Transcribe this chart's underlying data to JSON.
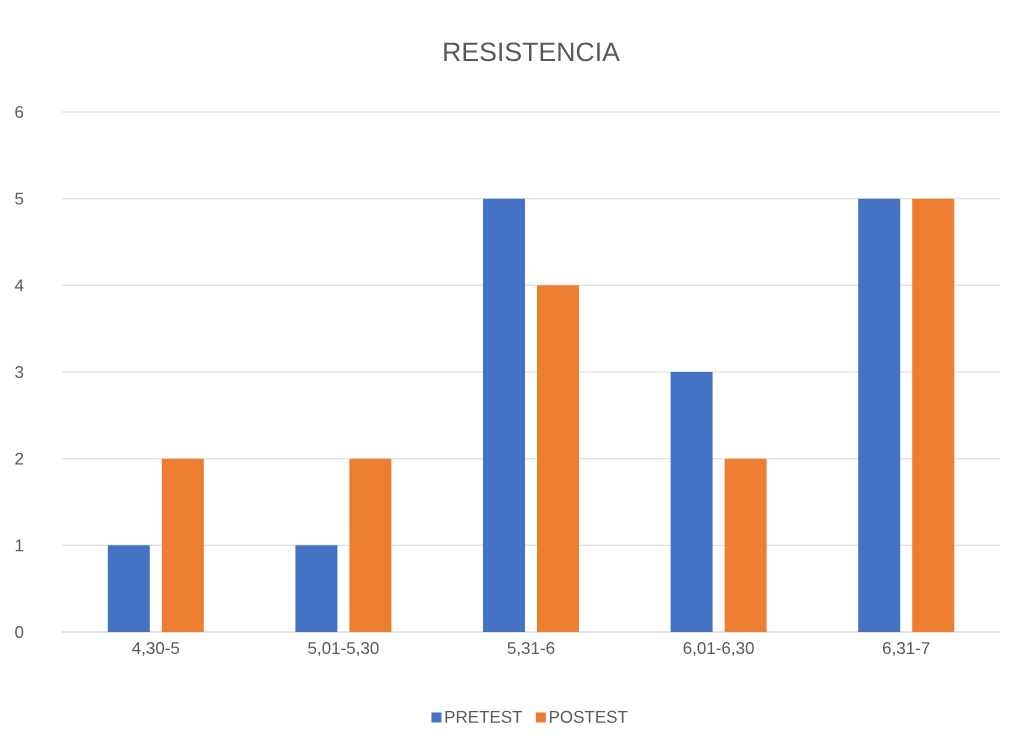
{
  "chart_data": {
    "type": "bar",
    "title": "RESISTENCIA",
    "categories": [
      "4,30-5",
      "5,01-5,30",
      "5,31-6",
      "6,01-6,30",
      "6,31-7"
    ],
    "series": [
      {
        "name": "PRETEST",
        "color": "#4472c4",
        "values": [
          1,
          1,
          5,
          3,
          5
        ]
      },
      {
        "name": "POSTEST",
        "color": "#ed7d31",
        "values": [
          2,
          2,
          4,
          2,
          5
        ]
      }
    ],
    "ylim": [
      0,
      6
    ],
    "yticks": [
      0,
      1,
      2,
      3,
      4,
      5,
      6
    ],
    "grid": "y",
    "legend": "bottom"
  }
}
